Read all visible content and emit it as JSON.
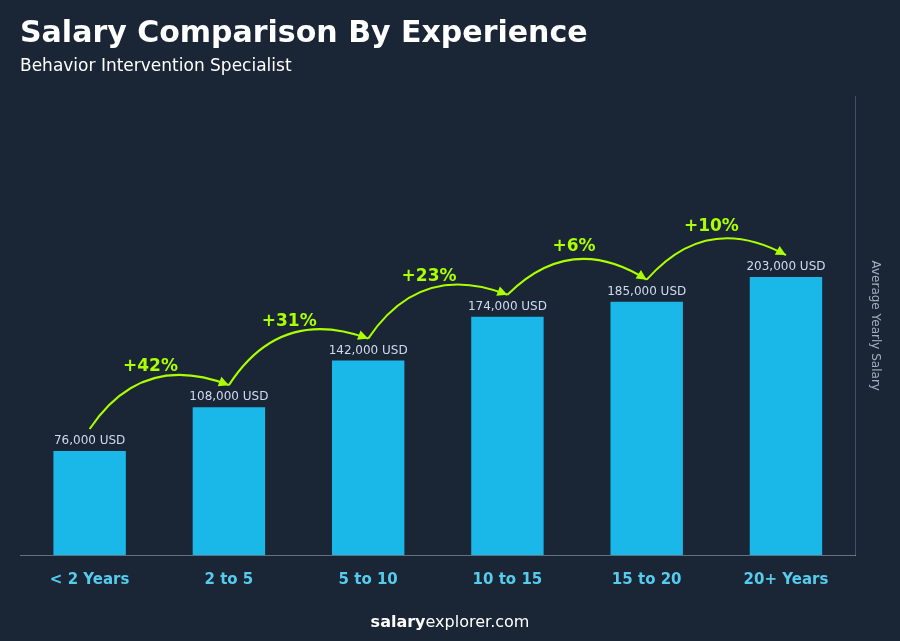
{
  "chart_data": {
    "type": "bar",
    "title": "Salary Comparison By Experience",
    "subtitle": "Behavior Intervention Specialist",
    "categories": [
      "< 2 Years",
      "2 to 5",
      "5 to 10",
      "10 to 15",
      "15 to 20",
      "20+ Years"
    ],
    "values": [
      76000,
      108000,
      142000,
      174000,
      185000,
      203000
    ],
    "value_labels": [
      "76,000 USD",
      "108,000 USD",
      "142,000 USD",
      "174,000 USD",
      "185,000 USD",
      "203,000 USD"
    ],
    "data_labels": true,
    "color": "#1ab8e8",
    "ylabel": "Average Yearly Salary",
    "ylim": [
      0,
      334950
    ],
    "grid": false,
    "tick_labels": "x",
    "annotations": [
      "+42%",
      "+31%",
      "+23%",
      "+6%",
      "+10%"
    ],
    "watermark": [
      "salary",
      "explorer.com"
    ]
  }
}
